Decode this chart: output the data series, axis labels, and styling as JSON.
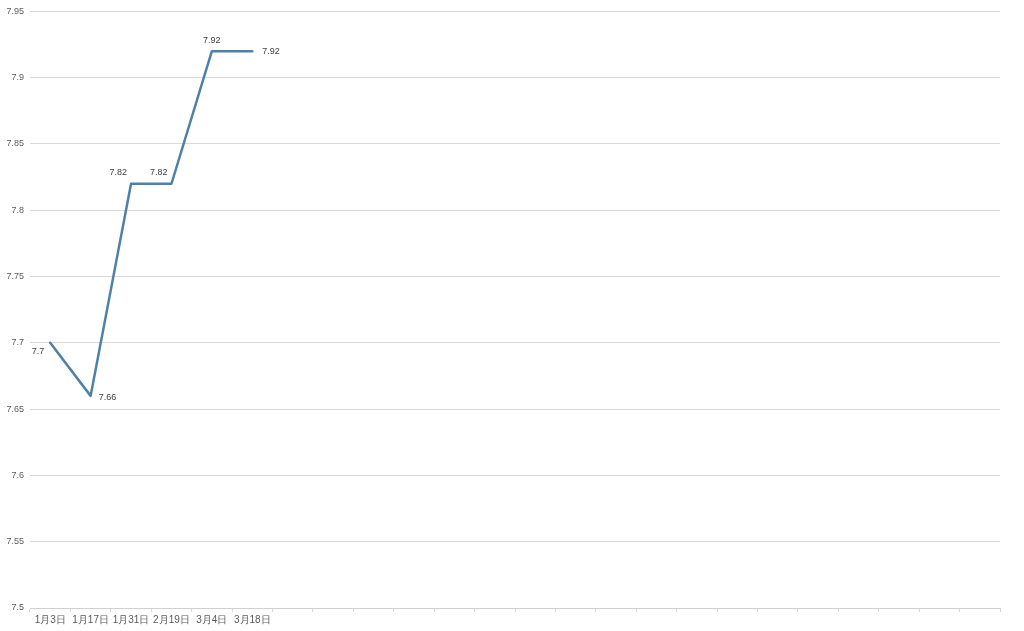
{
  "chart_data": {
    "type": "line",
    "categories": [
      "1月3日",
      "1月17日",
      "1月31日",
      "2月19日",
      "3月4日",
      "3月18日",
      null,
      null,
      null,
      null,
      null,
      null,
      null,
      null,
      null,
      null,
      null,
      null,
      null,
      null,
      null,
      null,
      null,
      null
    ],
    "series": [
      {
        "color": "#4f81a8",
        "values": [
          7.7,
          7.66,
          7.82,
          7.82,
          7.92,
          7.92,
          null,
          null,
          null,
          null,
          null,
          null,
          null,
          null,
          null,
          null,
          null,
          null,
          null,
          null,
          null,
          null,
          null,
          null
        ]
      }
    ],
    "ylim": [
      7.5,
      7.95
    ],
    "yticks": [
      7.5,
      7.55,
      7.6,
      7.65,
      7.7,
      7.75,
      7.8,
      7.85,
      7.9,
      7.95
    ],
    "grid": "y",
    "legend": false,
    "marker": "none",
    "line_style": "solid",
    "data_labels": true
  }
}
